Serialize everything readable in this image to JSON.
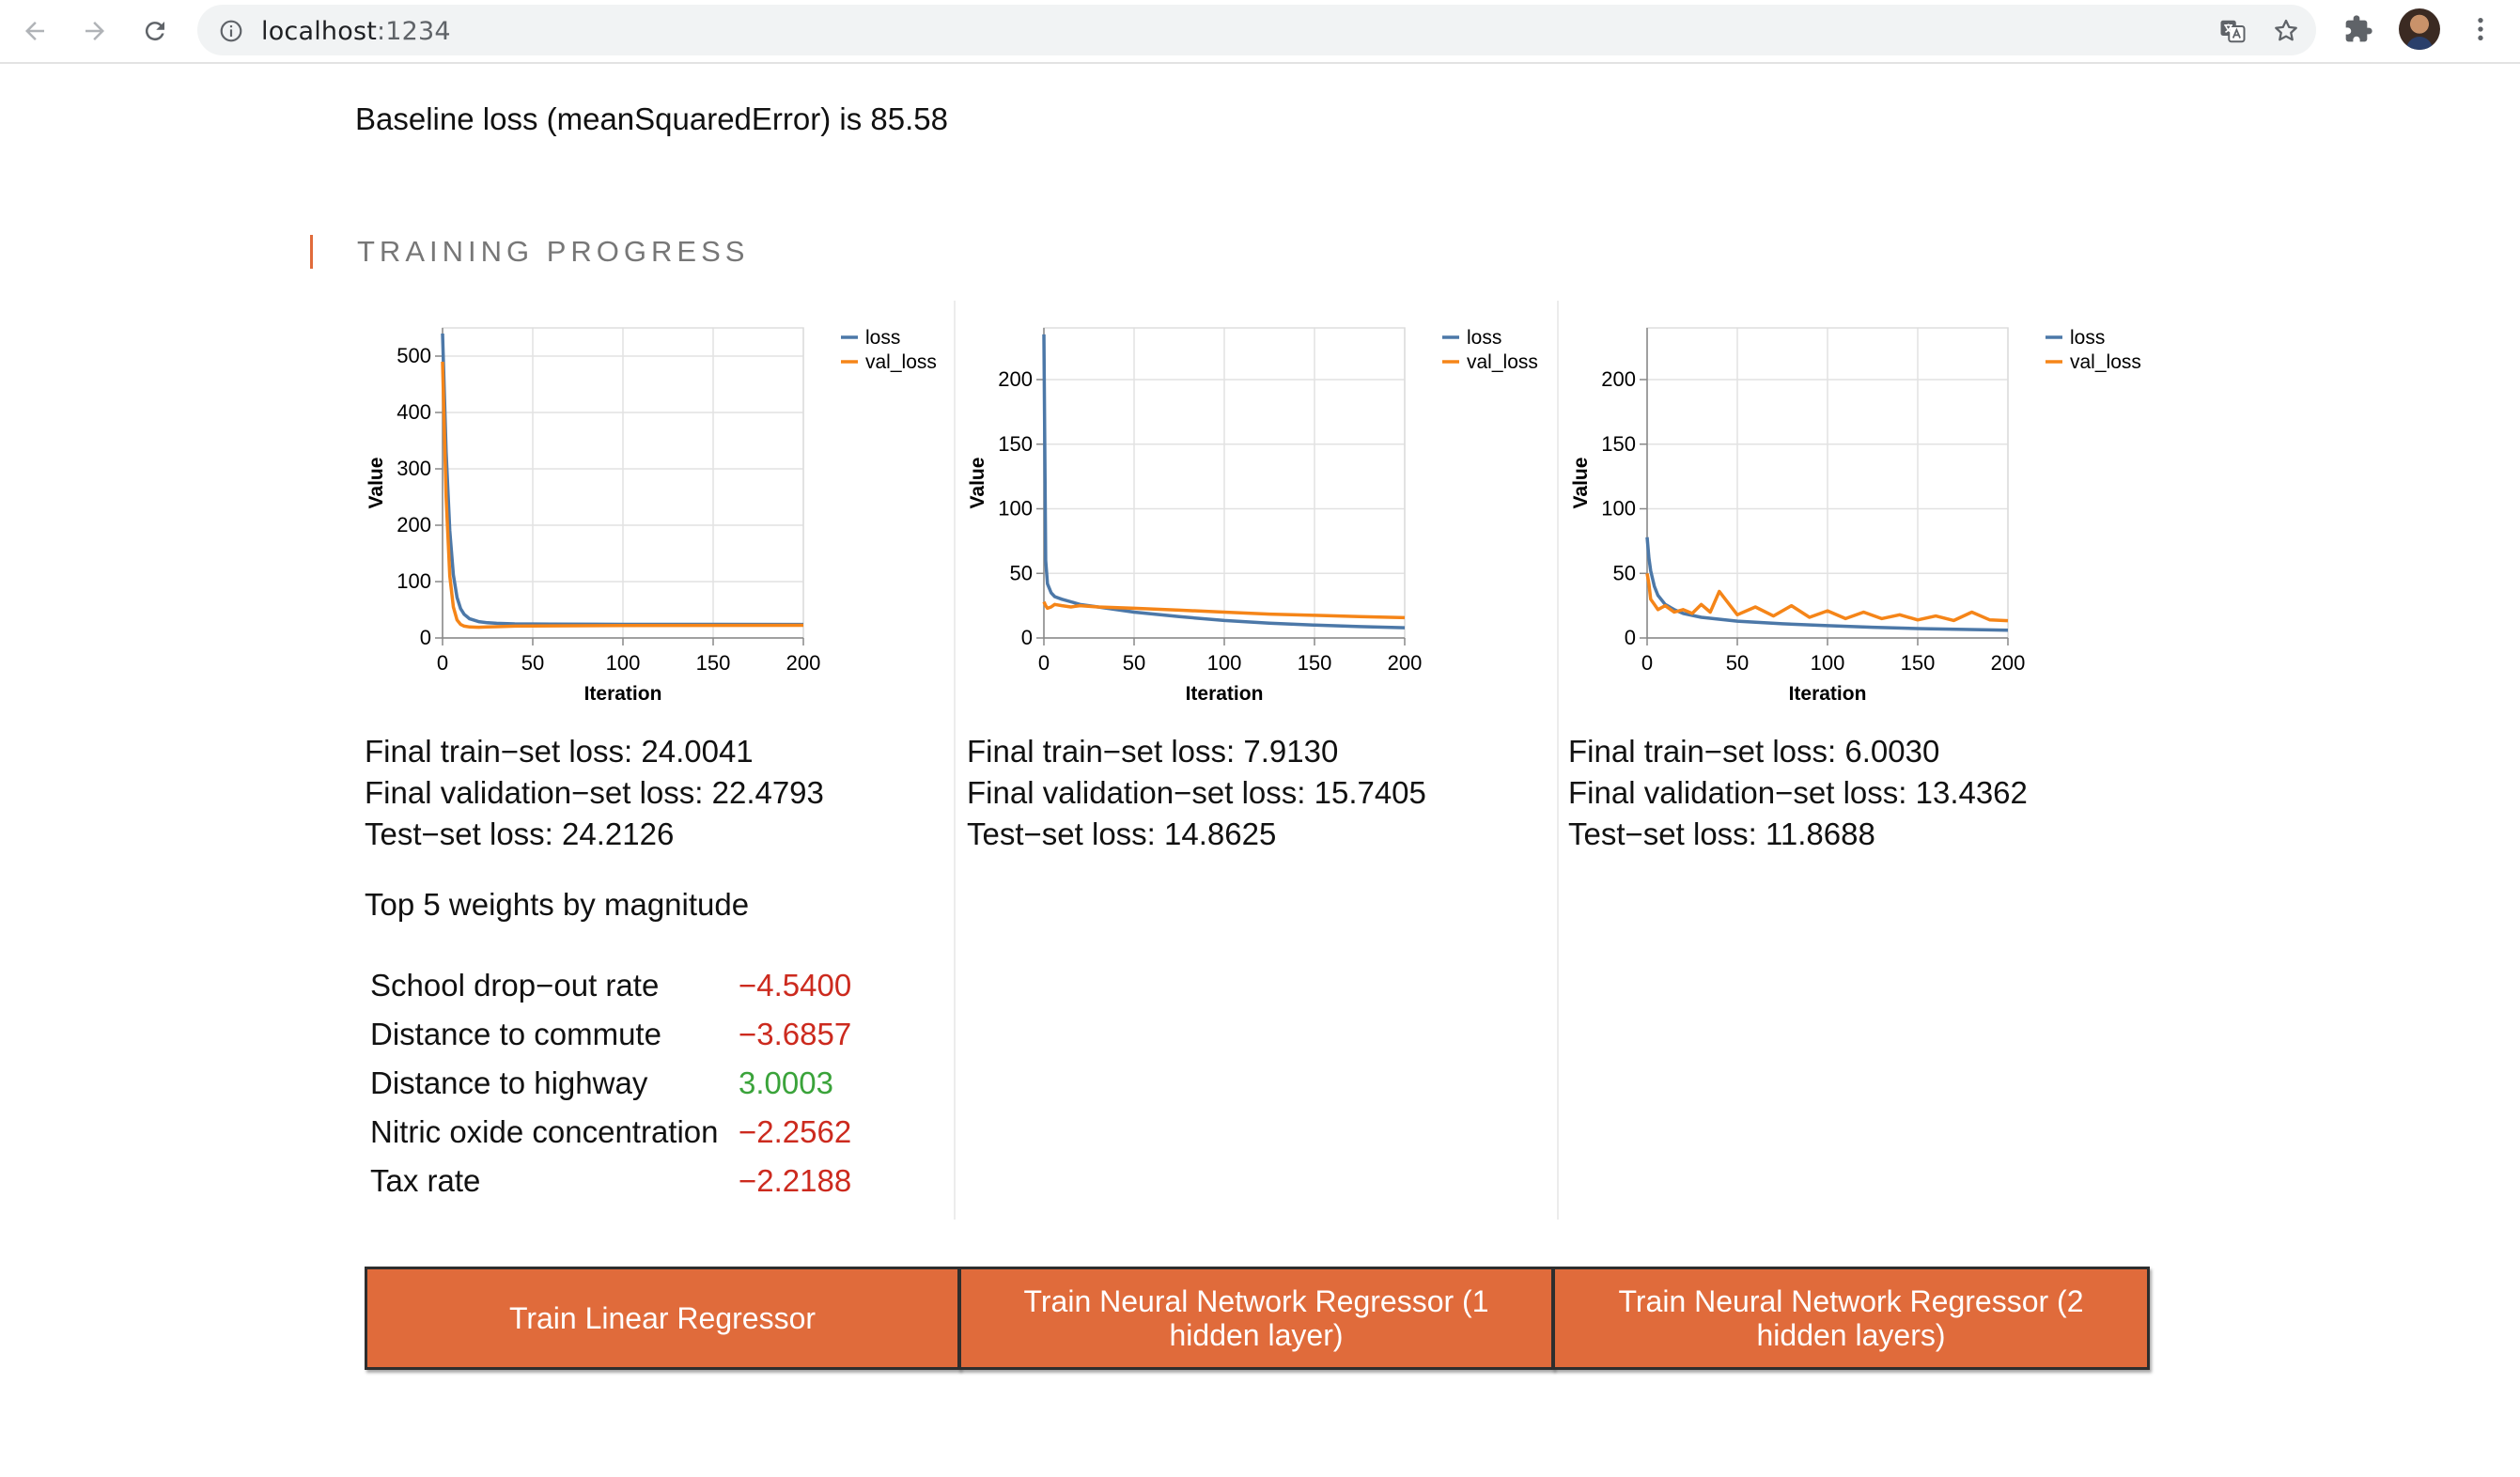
{
  "browser": {
    "url_host": "localhost",
    "url_port": ":1234"
  },
  "page": {
    "baseline": "Baseline loss (meanSquaredError) is 85.58",
    "section_title": "TRAINING PROGRESS"
  },
  "chart_data": [
    {
      "type": "line",
      "xlabel": "Iteration",
      "ylabel": "Value",
      "xlim": [
        0,
        200
      ],
      "ylim": [
        0,
        550
      ],
      "xticks": [
        0,
        50,
        100,
        150,
        200
      ],
      "yticks": [
        0,
        100,
        200,
        300,
        400,
        500
      ],
      "legend": "top-right",
      "grid": true,
      "series": [
        {
          "name": "loss",
          "color": "#4c78a8",
          "x": [
            0,
            2,
            4,
            6,
            8,
            10,
            12,
            15,
            20,
            25,
            30,
            40,
            60,
            100,
            150,
            200
          ],
          "values": [
            540,
            330,
            190,
            112,
            72,
            52,
            42,
            34,
            29,
            27,
            26,
            25,
            24.5,
            24.2,
            24.1,
            24.0
          ]
        },
        {
          "name": "val_loss",
          "color": "#f58518",
          "x": [
            0,
            2,
            4,
            6,
            8,
            10,
            12,
            15,
            20,
            25,
            30,
            40,
            60,
            100,
            150,
            200
          ],
          "values": [
            490,
            250,
            110,
            55,
            32,
            24,
            21,
            19.5,
            19,
            19.5,
            20,
            21,
            21.5,
            22,
            22.3,
            22.5
          ]
        }
      ]
    },
    {
      "type": "line",
      "xlabel": "Iteration",
      "ylabel": "Value",
      "xlim": [
        0,
        200
      ],
      "ylim": [
        0,
        240
      ],
      "xticks": [
        0,
        50,
        100,
        150,
        200
      ],
      "yticks": [
        0,
        50,
        100,
        150,
        200
      ],
      "legend": "top-right",
      "grid": true,
      "series": [
        {
          "name": "loss",
          "color": "#4c78a8",
          "x": [
            0,
            1,
            2,
            4,
            6,
            10,
            15,
            20,
            30,
            50,
            75,
            100,
            125,
            150,
            175,
            200
          ],
          "values": [
            235,
            60,
            42,
            35,
            32,
            30,
            28,
            26,
            24,
            20,
            16.5,
            13.5,
            11.5,
            10,
            8.8,
            7.9
          ]
        },
        {
          "name": "val_loss",
          "color": "#f58518",
          "x": [
            0,
            1,
            2,
            4,
            6,
            10,
            15,
            20,
            30,
            50,
            75,
            100,
            125,
            150,
            175,
            200
          ],
          "values": [
            28,
            25,
            23,
            24,
            26,
            25,
            24,
            25,
            24,
            23,
            21.5,
            20,
            18.5,
            17.5,
            16.5,
            15.7
          ]
        }
      ]
    },
    {
      "type": "line",
      "xlabel": "Iteration",
      "ylabel": "Value",
      "xlim": [
        0,
        200
      ],
      "ylim": [
        0,
        240
      ],
      "xticks": [
        0,
        50,
        100,
        150,
        200
      ],
      "yticks": [
        0,
        50,
        100,
        150,
        200
      ],
      "legend": "top-right",
      "grid": true,
      "series": [
        {
          "name": "loss",
          "color": "#4c78a8",
          "x": [
            0,
            1,
            2,
            4,
            6,
            10,
            15,
            20,
            30,
            50,
            75,
            100,
            125,
            150,
            175,
            200
          ],
          "values": [
            78,
            62,
            52,
            40,
            33,
            26,
            22,
            19,
            16,
            13,
            11,
            9.5,
            8.3,
            7.3,
            6.6,
            6.0
          ]
        },
        {
          "name": "val_loss",
          "color": "#f58518",
          "x": [
            0,
            1,
            2,
            4,
            6,
            10,
            15,
            20,
            25,
            30,
            35,
            40,
            50,
            60,
            70,
            80,
            90,
            100,
            110,
            120,
            130,
            140,
            150,
            160,
            170,
            180,
            190,
            200
          ],
          "values": [
            50,
            42,
            30,
            26,
            22,
            25,
            20,
            22,
            19,
            26,
            20,
            36,
            18,
            24,
            17,
            25,
            16,
            21,
            15,
            20,
            15,
            18,
            14,
            17,
            13.5,
            20,
            14,
            13.4
          ]
        }
      ]
    }
  ],
  "results": [
    {
      "train": "Final train−set loss: 24.0041",
      "val": "Final validation−set loss: 22.4793",
      "test": "Test−set loss: 24.2126"
    },
    {
      "train": "Final train−set loss: 7.9130",
      "val": "Final validation−set loss: 15.7405",
      "test": "Test−set loss: 14.8625"
    },
    {
      "train": "Final train−set loss: 6.0030",
      "val": "Final validation−set loss: 13.4362",
      "test": "Test−set loss: 11.8688"
    }
  ],
  "weights": {
    "title": "Top 5 weights by magnitude",
    "rows": [
      {
        "name": "School drop−out rate",
        "value": "−4.5400",
        "sign": "neg"
      },
      {
        "name": "Distance to commute",
        "value": "−3.6857",
        "sign": "neg"
      },
      {
        "name": "Distance to highway",
        "value": "3.0003",
        "sign": "pos"
      },
      {
        "name": "Nitric oxide concentration",
        "value": "−2.2562",
        "sign": "neg"
      },
      {
        "name": "Tax rate",
        "value": "−2.2188",
        "sign": "neg"
      }
    ]
  },
  "buttons": {
    "linear": "Train Linear Regressor",
    "nn1": "Train Neural Network Regressor (1 hidden layer)",
    "nn2": "Train Neural Network Regressor (2 hidden layers)"
  }
}
